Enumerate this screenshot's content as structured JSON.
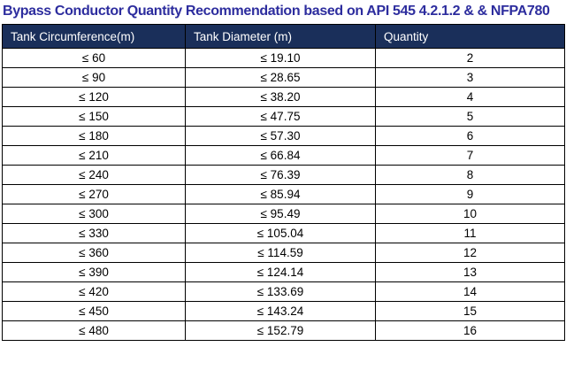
{
  "title": "Bypass Conductor Quantity Recommendation based on API 545 4.2.1.2 & & NFPA780",
  "colors": {
    "title": "#2D2D9E",
    "header_bg": "#1A2F5A",
    "header_text": "#FFFFFF",
    "border": "#000000"
  },
  "table": {
    "headers": [
      "Tank Circumference(m)",
      "Tank Diameter (m)",
      "Quantity"
    ],
    "rows": [
      [
        "≤ 60",
        "≤ 19.10",
        "2"
      ],
      [
        "≤ 90",
        "≤ 28.65",
        "3"
      ],
      [
        "≤ 120",
        "≤ 38.20",
        "4"
      ],
      [
        "≤ 150",
        "≤ 47.75",
        "5"
      ],
      [
        "≤ 180",
        "≤ 57.30",
        "6"
      ],
      [
        "≤ 210",
        "≤ 66.84",
        "7"
      ],
      [
        "≤ 240",
        "≤ 76.39",
        "8"
      ],
      [
        "≤ 270",
        "≤ 85.94",
        "9"
      ],
      [
        "≤ 300",
        "≤ 95.49",
        "10"
      ],
      [
        "≤ 330",
        "≤ 105.04",
        "11"
      ],
      [
        "≤ 360",
        "≤ 114.59",
        "12"
      ],
      [
        "≤ 390",
        "≤ 124.14",
        "13"
      ],
      [
        "≤ 420",
        "≤ 133.69",
        "14"
      ],
      [
        "≤ 450",
        "≤ 143.24",
        "15"
      ],
      [
        "≤ 480",
        "≤ 152.79",
        "16"
      ]
    ]
  }
}
